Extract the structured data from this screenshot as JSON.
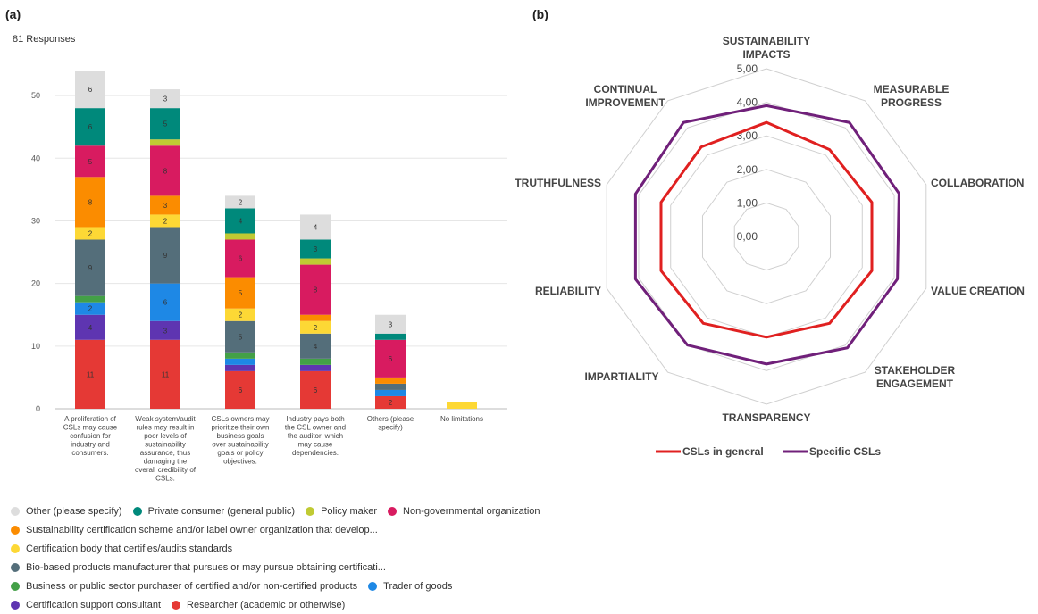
{
  "panel_a_label": "(a)",
  "panel_b_label": "(b)",
  "responses": "81 Responses",
  "chart_data": [
    {
      "type": "bar",
      "stacked": true,
      "ylim": [
        0,
        55
      ],
      "yticks": [
        0,
        10,
        20,
        30,
        40,
        50
      ],
      "categories": [
        "A proliferation of CSLs may cause confusion for industry and consumers.",
        "Weak system/audit rules may result in poor levels of sustainability assurance, thus damaging the overall credibility of CSLs.",
        "CSLs owners may prioritize their own business goals over sustainability goals or policy objectives.",
        "Industry pays both the CSL owner and the auditor, which may cause dependencies.",
        "Others (please specify)",
        "No limitations"
      ],
      "category_lines": [
        [
          "A proliferation of",
          "CSLs may cause",
          "confusion for",
          "industry and",
          "consumers."
        ],
        [
          "Weak system/audit",
          "rules may result in",
          "poor levels of",
          "sustainability",
          "assurance, thus",
          "damaging the",
          "overall credibility of",
          "CSLs."
        ],
        [
          "CSLs owners may",
          "prioritize their own",
          "business goals",
          "over sustainability",
          "goals or policy",
          "objectives."
        ],
        [
          "Industry pays both",
          "the CSL owner and",
          "the auditor, which",
          "may cause",
          "dependencies."
        ],
        [
          "Others (please",
          "specify)"
        ],
        [
          "No limitations"
        ]
      ],
      "series": [
        {
          "name": "Researcher (academic or otherwise)",
          "color": "#e53935",
          "values": [
            11,
            11,
            6,
            6,
            2,
            0
          ],
          "labels": [
            "11",
            "11",
            "6",
            "6",
            "2",
            ""
          ]
        },
        {
          "name": "Certification support consultant",
          "color": "#5e35b1",
          "values": [
            4,
            3,
            1,
            1,
            0,
            0
          ],
          "labels": [
            "4",
            "3",
            "",
            "",
            "",
            ""
          ]
        },
        {
          "name": "Trader of goods",
          "color": "#1e88e5",
          "values": [
            2,
            6,
            1,
            0,
            1,
            0
          ],
          "labels": [
            "2",
            "6",
            "",
            "",
            "",
            ""
          ]
        },
        {
          "name": "Business or public sector purchaser of certified and/or non-certified products",
          "color": "#43a047",
          "values": [
            1,
            0,
            1,
            1,
            0,
            0
          ],
          "labels": [
            "",
            "",
            "",
            "",
            "",
            ""
          ]
        },
        {
          "name": "Bio-based products manufacturer that pursues or may pursue obtaining certificati...",
          "color": "#546e7a",
          "values": [
            9,
            9,
            5,
            4,
            1,
            0
          ],
          "labels": [
            "9",
            "9",
            "5",
            "4",
            "",
            ""
          ]
        },
        {
          "name": "Certification body that certifies/audits standards",
          "color": "#fdd835",
          "values": [
            2,
            2,
            2,
            2,
            0,
            1
          ],
          "labels": [
            "2",
            "2",
            "2",
            "2",
            "",
            ""
          ]
        },
        {
          "name": "Sustainability certification scheme and/or label owner organization that develop...",
          "color": "#fb8c00",
          "values": [
            8,
            3,
            5,
            1,
            1,
            0
          ],
          "labels": [
            "8",
            "3",
            "5",
            "",
            "",
            ""
          ]
        },
        {
          "name": "Non-governmental organization",
          "color": "#d81b60",
          "values": [
            5,
            8,
            6,
            8,
            6,
            0
          ],
          "labels": [
            "5",
            "8",
            "6",
            "8",
            "6",
            ""
          ]
        },
        {
          "name": "Policy maker",
          "color": "#c0ca33",
          "values": [
            0,
            1,
            1,
            1,
            0,
            0
          ],
          "labels": [
            "",
            "",
            "",
            "",
            "",
            ""
          ]
        },
        {
          "name": "Private consumer (general public)",
          "color": "#00897b",
          "values": [
            6,
            5,
            4,
            3,
            1,
            0
          ],
          "labels": [
            "6",
            "5",
            "4",
            "3",
            "",
            ""
          ]
        },
        {
          "name": "Other (please specify)",
          "color": "#dddddd",
          "values": [
            6,
            3,
            2,
            4,
            3,
            0
          ],
          "labels": [
            "6",
            "3",
            "2",
            "4",
            "3",
            ""
          ]
        }
      ]
    },
    {
      "type": "radar",
      "rmax": 5,
      "tick_labels": [
        "0,00",
        "1,00",
        "2,00",
        "3,00",
        "4,00",
        "5,00"
      ],
      "axes": [
        [
          "SUSTAINABILITY",
          "IMPACTS"
        ],
        [
          "MEASURABLE",
          "PROGRESS"
        ],
        [
          "COLLABORATION"
        ],
        [
          "VALUE CREATION"
        ],
        [
          "STAKEHOLDER",
          "ENGAGEMENT"
        ],
        [
          "TRANSPARENCY"
        ],
        [
          "IMPARTIALITY"
        ],
        [
          "RELIABILITY"
        ],
        [
          "TRUTHFULNESS"
        ],
        [
          "CONTINUAL",
          "IMPROVEMENT"
        ]
      ],
      "series": [
        {
          "name": "CSLs in general",
          "color": "#e02020",
          "values": [
            3.4,
            3.2,
            3.3,
            3.3,
            3.2,
            3.0,
            3.2,
            3.3,
            3.3,
            3.3
          ]
        },
        {
          "name": "Specific CSLs",
          "color": "#70207a",
          "values": [
            3.9,
            4.2,
            4.15,
            4.1,
            4.1,
            3.8,
            4.0,
            4.1,
            4.1,
            4.2
          ]
        }
      ]
    }
  ],
  "legend_a_rows": [
    [
      10,
      9,
      8,
      7
    ],
    [
      6
    ],
    [
      5
    ],
    [
      4
    ],
    [
      3,
      2
    ],
    [
      1,
      0
    ]
  ]
}
